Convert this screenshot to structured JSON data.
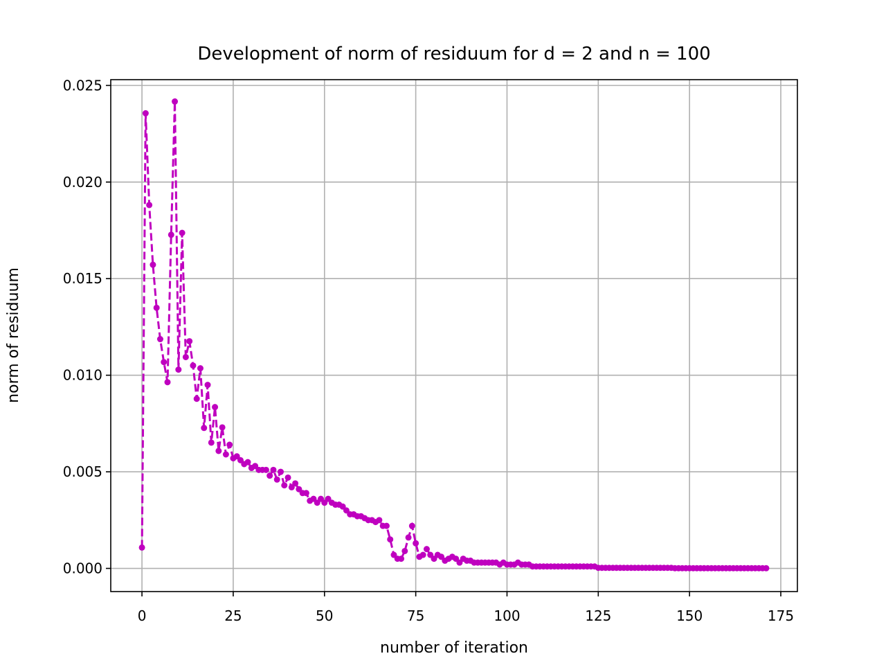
{
  "chart_data": {
    "type": "line",
    "title": "Development of norm of residuum for d = 2 and n = 100",
    "x_label": "number of iteration",
    "y_label": "norm of residuum",
    "color": "#bf00bf",
    "line_style": "dashed",
    "marker": "dot",
    "grid": true,
    "xlim": [
      -8.55,
      179.55
    ],
    "ylim": [
      -0.0012,
      0.0253
    ],
    "xticks": [
      0,
      25,
      50,
      75,
      100,
      125,
      150,
      175
    ],
    "yticks": [
      {
        "value": 0,
        "label": "0.000"
      },
      0.005,
      {
        "value": 0.01,
        "label": "0.010"
      },
      0.015,
      {
        "value": 0.02,
        "label": "0.020"
      },
      0.025
    ],
    "x": [
      0,
      1,
      2,
      3,
      4,
      5,
      6,
      7,
      8,
      9,
      10,
      11,
      12,
      13,
      14,
      15,
      16,
      17,
      18,
      19,
      20,
      21,
      22,
      23,
      24,
      25,
      26,
      27,
      28,
      29,
      30,
      31,
      32,
      33,
      34,
      35,
      36,
      37,
      38,
      39,
      40,
      41,
      42,
      43,
      44,
      45,
      46,
      47,
      48,
      49,
      50,
      51,
      52,
      53,
      54,
      55,
      56,
      57,
      58,
      59,
      60,
      61,
      62,
      63,
      64,
      65,
      66,
      67,
      68,
      69,
      70,
      71,
      72,
      73,
      74,
      75,
      76,
      77,
      78,
      79,
      80,
      81,
      82,
      83,
      84,
      85,
      86,
      87,
      88,
      89,
      90,
      91,
      92,
      93,
      94,
      95,
      96,
      97,
      98,
      99,
      100,
      101,
      102,
      103,
      104,
      105,
      106,
      107,
      108,
      109,
      110,
      111,
      112,
      113,
      114,
      115,
      116,
      117,
      118,
      119,
      120,
      121,
      122,
      123,
      124,
      125,
      126,
      127,
      128,
      129,
      130,
      131,
      132,
      133,
      134,
      135,
      136,
      137,
      138,
      139,
      140,
      141,
      142,
      143,
      144,
      145,
      146,
      147,
      148,
      149,
      150,
      151,
      152,
      153,
      154,
      155,
      156,
      157,
      158,
      159,
      160,
      161,
      162,
      163,
      164,
      165,
      166,
      167,
      168,
      169,
      170,
      171
    ],
    "values": [
      0.00108,
      0.02356,
      0.01881,
      0.01572,
      0.01349,
      0.01187,
      0.01068,
      0.00964,
      0.01727,
      0.02417,
      0.01029,
      0.01737,
      0.01094,
      0.01176,
      0.0105,
      0.00878,
      0.01036,
      0.00727,
      0.0095,
      0.00651,
      0.00835,
      0.00608,
      0.0073,
      0.0059,
      0.0064,
      0.0057,
      0.0058,
      0.0056,
      0.0054,
      0.0055,
      0.0052,
      0.0053,
      0.0051,
      0.0051,
      0.0051,
      0.0048,
      0.0051,
      0.0046,
      0.005,
      0.0043,
      0.0047,
      0.0042,
      0.0044,
      0.0041,
      0.0039,
      0.0039,
      0.0035,
      0.0036,
      0.0034,
      0.0036,
      0.0034,
      0.0036,
      0.0034,
      0.0033,
      0.0033,
      0.0032,
      0.003,
      0.0028,
      0.0028,
      0.0027,
      0.0027,
      0.0026,
      0.0025,
      0.0025,
      0.0024,
      0.0025,
      0.0022,
      0.0022,
      0.0015,
      0.0007,
      0.0005,
      0.0005,
      0.0009,
      0.0016,
      0.0022,
      0.0013,
      0.0006,
      0.0007,
      0.001,
      0.0007,
      0.0005,
      0.0007,
      0.0006,
      0.0004,
      0.0005,
      0.0006,
      0.0005,
      0.0003,
      0.0005,
      0.0004,
      0.0004,
      0.0003,
      0.0003,
      0.0003,
      0.0003,
      0.0003,
      0.0003,
      0.0003,
      0.0002,
      0.0003,
      0.0002,
      0.0002,
      0.0002,
      0.0003,
      0.0002,
      0.0002,
      0.0002,
      0.0001,
      0.0001,
      0.0001,
      0.0001,
      0.0001,
      0.0001,
      0.0001,
      0.0001,
      0.0001,
      0.0001,
      0.0001,
      0.0001,
      0.0001,
      0.0001,
      0.0001,
      0.0001,
      0.0001,
      0.0001,
      3e-05,
      3e-05,
      3e-05,
      3e-05,
      3e-05,
      3e-05,
      3e-05,
      3e-05,
      3e-05,
      3e-05,
      3e-05,
      3e-05,
      3e-05,
      3e-05,
      3e-05,
      3e-05,
      3e-05,
      3e-05,
      3e-05,
      3e-05,
      3e-05,
      1e-05,
      1e-05,
      1e-05,
      1e-05,
      1e-05,
      1e-05,
      1e-05,
      1e-05,
      1e-05,
      1e-05,
      1e-05,
      1e-05,
      1e-05,
      1e-05,
      1e-05,
      1e-05,
      1e-05,
      1e-05,
      1e-05,
      1e-05,
      1e-05,
      1e-05,
      1e-05,
      1e-05,
      1e-05,
      1e-05
    ]
  }
}
